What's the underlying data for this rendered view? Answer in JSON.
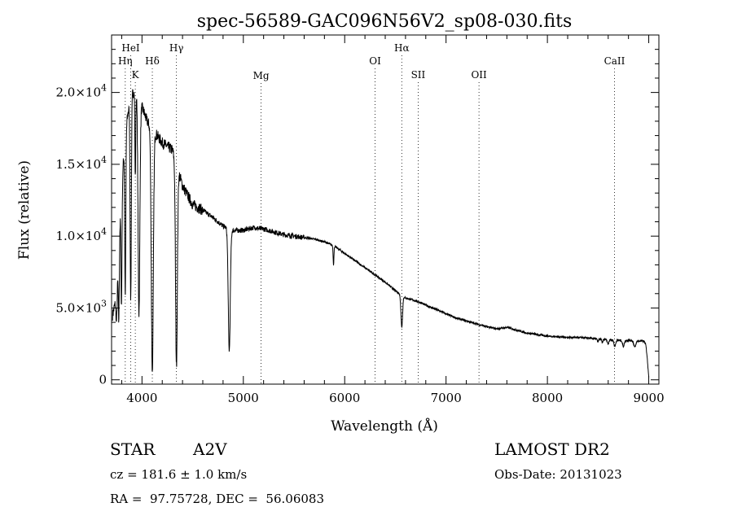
{
  "chart_data": {
    "type": "line",
    "title": "spec-56589-GAC096N56V2_sp08-030.fits",
    "xlabel": "Wavelength (Å)",
    "ylabel": "Flux (relative)",
    "xlim": [
      3700,
      9100
    ],
    "ylim": [
      -300,
      24000
    ],
    "x_ticks": [
      {
        "value": 4000,
        "label": "4000"
      },
      {
        "value": 5000,
        "label": "5000"
      },
      {
        "value": 6000,
        "label": "6000"
      },
      {
        "value": 7000,
        "label": "7000"
      },
      {
        "value": 8000,
        "label": "8000"
      },
      {
        "value": 9000,
        "label": "9000"
      }
    ],
    "y_ticks": [
      {
        "value": 0,
        "mant": "0",
        "exp": ""
      },
      {
        "value": 5000,
        "mant": "5.0×10",
        "exp": "3"
      },
      {
        "value": 10000,
        "mant": "1.0×10",
        "exp": "4"
      },
      {
        "value": 15000,
        "mant": "1.5×10",
        "exp": "4"
      },
      {
        "value": 20000,
        "mant": "2.0×10",
        "exp": "4"
      }
    ],
    "lines": [
      {
        "label": "HeI",
        "x": 3889,
        "row": 0
      },
      {
        "label": "Hη",
        "x": 3835,
        "row": 1
      },
      {
        "label": "Hδ",
        "x": 4102,
        "row": 1
      },
      {
        "label": "Hγ",
        "x": 4340,
        "row": 0
      },
      {
        "label": "K",
        "x": 3934,
        "row": 2
      },
      {
        "label": "Mg",
        "x": 5175,
        "row": 3
      },
      {
        "label": "OI",
        "x": 6300,
        "row": 1
      },
      {
        "label": "Hα",
        "x": 6563,
        "row": 0
      },
      {
        "label": "OII",
        "x": 7325,
        "row": 2
      },
      {
        "label": "SII",
        "x": 6725,
        "row": 2
      },
      {
        "label": "CaII",
        "x": 8662,
        "row": 1
      }
    ],
    "continuum": [
      [
        3710,
        4500
      ],
      [
        3740,
        5500
      ],
      [
        3770,
        9000
      ],
      [
        3800,
        13500
      ],
      [
        3830,
        16500
      ],
      [
        3860,
        18500
      ],
      [
        3900,
        20000
      ],
      [
        3950,
        20000
      ],
      [
        4000,
        19000
      ],
      [
        4050,
        18000
      ],
      [
        4150,
        17000
      ],
      [
        4200,
        16500
      ],
      [
        4300,
        16000
      ],
      [
        4400,
        13500
      ],
      [
        4500,
        12200
      ],
      [
        4600,
        11800
      ],
      [
        4700,
        11300
      ],
      [
        4800,
        10700
      ],
      [
        4900,
        10400
      ],
      [
        5000,
        10400
      ],
      [
        5100,
        10600
      ],
      [
        5200,
        10500
      ],
      [
        5300,
        10300
      ],
      [
        5400,
        10100
      ],
      [
        5500,
        10000
      ],
      [
        5600,
        9900
      ],
      [
        5700,
        9800
      ],
      [
        5800,
        9600
      ],
      [
        5900,
        9300
      ],
      [
        6000,
        8800
      ],
      [
        6100,
        8300
      ],
      [
        6200,
        7800
      ],
      [
        6300,
        7300
      ],
      [
        6400,
        6800
      ],
      [
        6500,
        6200
      ],
      [
        6600,
        5700
      ],
      [
        6700,
        5500
      ],
      [
        6800,
        5200
      ],
      [
        6900,
        4900
      ],
      [
        7000,
        4600
      ],
      [
        7100,
        4300
      ],
      [
        7200,
        4100
      ],
      [
        7300,
        3900
      ],
      [
        7400,
        3700
      ],
      [
        7500,
        3550
      ],
      [
        7600,
        3650
      ],
      [
        7700,
        3450
      ],
      [
        7800,
        3250
      ],
      [
        7900,
        3150
      ],
      [
        8000,
        3050
      ],
      [
        8100,
        3000
      ],
      [
        8200,
        2950
      ],
      [
        8300,
        2950
      ],
      [
        8400,
        2900
      ],
      [
        8500,
        2850
      ],
      [
        8600,
        2800
      ],
      [
        8700,
        2750
      ],
      [
        8800,
        2750
      ],
      [
        8900,
        2700
      ],
      [
        8950,
        2700
      ],
      [
        8970,
        2500
      ],
      [
        8985,
        1500
      ],
      [
        9000,
        150
      ]
    ],
    "absorption": [
      {
        "center": 3750,
        "depth": 2500,
        "width": 6
      },
      {
        "center": 3771,
        "depth": 5000,
        "width": 5
      },
      {
        "center": 3798,
        "depth": 8000,
        "width": 5
      },
      {
        "center": 3835,
        "depth": 11000,
        "width": 5
      },
      {
        "center": 3889,
        "depth": 14000,
        "width": 6
      },
      {
        "center": 3934,
        "depth": 6000,
        "width": 4
      },
      {
        "center": 3970,
        "depth": 15000,
        "width": 9
      },
      {
        "center": 4102,
        "depth": 17000,
        "width": 10
      },
      {
        "center": 4340,
        "depth": 14000,
        "width": 9
      },
      {
        "center": 4861,
        "depth": 8500,
        "width": 10
      },
      {
        "center": 5890,
        "depth": 1300,
        "width": 4
      },
      {
        "center": 6563,
        "depth": 2200,
        "width": 8
      },
      {
        "center": 8498,
        "depth": 200,
        "width": 6
      },
      {
        "center": 8542,
        "depth": 250,
        "width": 6
      },
      {
        "center": 8598,
        "depth": 300,
        "width": 7
      },
      {
        "center": 8665,
        "depth": 450,
        "width": 8
      },
      {
        "center": 8750,
        "depth": 400,
        "width": 9
      },
      {
        "center": 8863,
        "depth": 450,
        "width": 10
      }
    ],
    "noise_amplitude": 350,
    "grid": false
  },
  "info": {
    "object_type": "STAR",
    "spectral_class": "A2V",
    "survey": "LAMOST DR2",
    "cz": "cz = 181.6 ± 1.0 km/s",
    "obs_date": "Obs-Date: 20131023",
    "coords": "RA =  97.75728, DEC =  56.06083"
  }
}
